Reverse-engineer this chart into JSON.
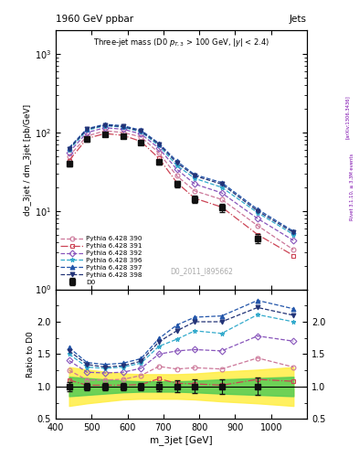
{
  "title_top": "1960 GeV ppbar",
  "title_top_right": "Jets",
  "annotation": "Three-jet mass (D0 p_{T,3} > 100 GeV, |y| < 2.4)",
  "watermark": "D0_2011_I895662",
  "xlabel": "m_3jet [GeV]",
  "ylabel_main": "dσ_3jet / dm_3jet [pb/GeV]",
  "ylabel_ratio": "Ratio to D0",
  "right_label": "Rivet 3.1.10, ≥ 3.3M events",
  "arxiv_label": "[arXiv:1306.3436]",
  "x_values": [
    437.5,
    487.5,
    537.5,
    587.5,
    637.5,
    687.5,
    737.5,
    787.5,
    862.5,
    962.5,
    1062.5
  ],
  "d0_y": [
    40,
    82,
    95,
    90,
    75,
    42,
    22,
    14,
    11,
    4.5,
    null
  ],
  "d0_yerr": [
    3,
    5,
    5,
    5,
    4,
    3,
    2,
    1.5,
    1.2,
    0.6,
    null
  ],
  "py390_y": [
    50,
    90,
    105,
    100,
    88,
    55,
    28,
    18,
    14,
    6.5,
    3.2
  ],
  "py391_y": [
    44,
    84,
    97,
    92,
    77,
    47,
    23,
    14.5,
    11.2,
    5.0,
    2.7
  ],
  "py392_y": [
    56,
    100,
    115,
    110,
    96,
    63,
    34,
    22,
    17,
    8.0,
    4.2
  ],
  "py396_y": [
    60,
    107,
    122,
    117,
    102,
    68,
    38,
    26,
    20,
    9.5,
    5.0
  ],
  "py397_y": [
    64,
    112,
    127,
    122,
    107,
    73,
    43,
    29,
    23,
    10.5,
    5.5
  ],
  "py398_y": [
    62,
    110,
    124,
    119,
    104,
    71,
    41,
    28,
    22,
    10.0,
    5.3
  ],
  "ratio390": [
    1.25,
    1.1,
    1.1,
    1.11,
    1.17,
    1.31,
    1.27,
    1.29,
    1.27,
    1.44,
    1.3
  ],
  "ratio391": [
    1.1,
    1.02,
    1.02,
    1.02,
    1.03,
    1.12,
    1.05,
    1.04,
    1.02,
    1.11,
    1.08
  ],
  "ratio392": [
    1.4,
    1.22,
    1.21,
    1.22,
    1.28,
    1.5,
    1.55,
    1.57,
    1.55,
    1.78,
    1.7
  ],
  "ratio396": [
    1.5,
    1.3,
    1.28,
    1.3,
    1.36,
    1.62,
    1.73,
    1.86,
    1.82,
    2.11,
    2.0
  ],
  "ratio397": [
    1.6,
    1.37,
    1.34,
    1.36,
    1.43,
    1.74,
    1.95,
    2.07,
    2.09,
    2.33,
    2.2
  ],
  "ratio398": [
    1.55,
    1.34,
    1.3,
    1.32,
    1.39,
    1.69,
    1.86,
    2.0,
    2.0,
    2.22,
    2.1
  ],
  "green_band_lo": [
    0.85,
    0.87,
    0.89,
    0.91,
    0.92,
    0.92,
    0.92,
    0.91,
    0.89,
    0.87,
    0.85
  ],
  "green_band_hi": [
    1.15,
    1.13,
    1.11,
    1.09,
    1.08,
    1.08,
    1.08,
    1.09,
    1.11,
    1.13,
    1.15
  ],
  "yellow_band_lo": [
    0.7,
    0.74,
    0.77,
    0.8,
    0.81,
    0.81,
    0.81,
    0.8,
    0.77,
    0.74,
    0.7
  ],
  "yellow_band_hi": [
    1.3,
    1.26,
    1.23,
    1.2,
    1.19,
    1.19,
    1.19,
    1.2,
    1.23,
    1.26,
    1.3
  ],
  "xlim": [
    400,
    1100
  ],
  "ylim_main": [
    1,
    2000
  ],
  "ylim_ratio": [
    0.5,
    2.5
  ],
  "color390": "#cc7799",
  "color391": "#cc4455",
  "color392": "#8855bb",
  "color396": "#33aacc",
  "color397": "#2255aa",
  "color398": "#223377",
  "color_d0": "#111111"
}
